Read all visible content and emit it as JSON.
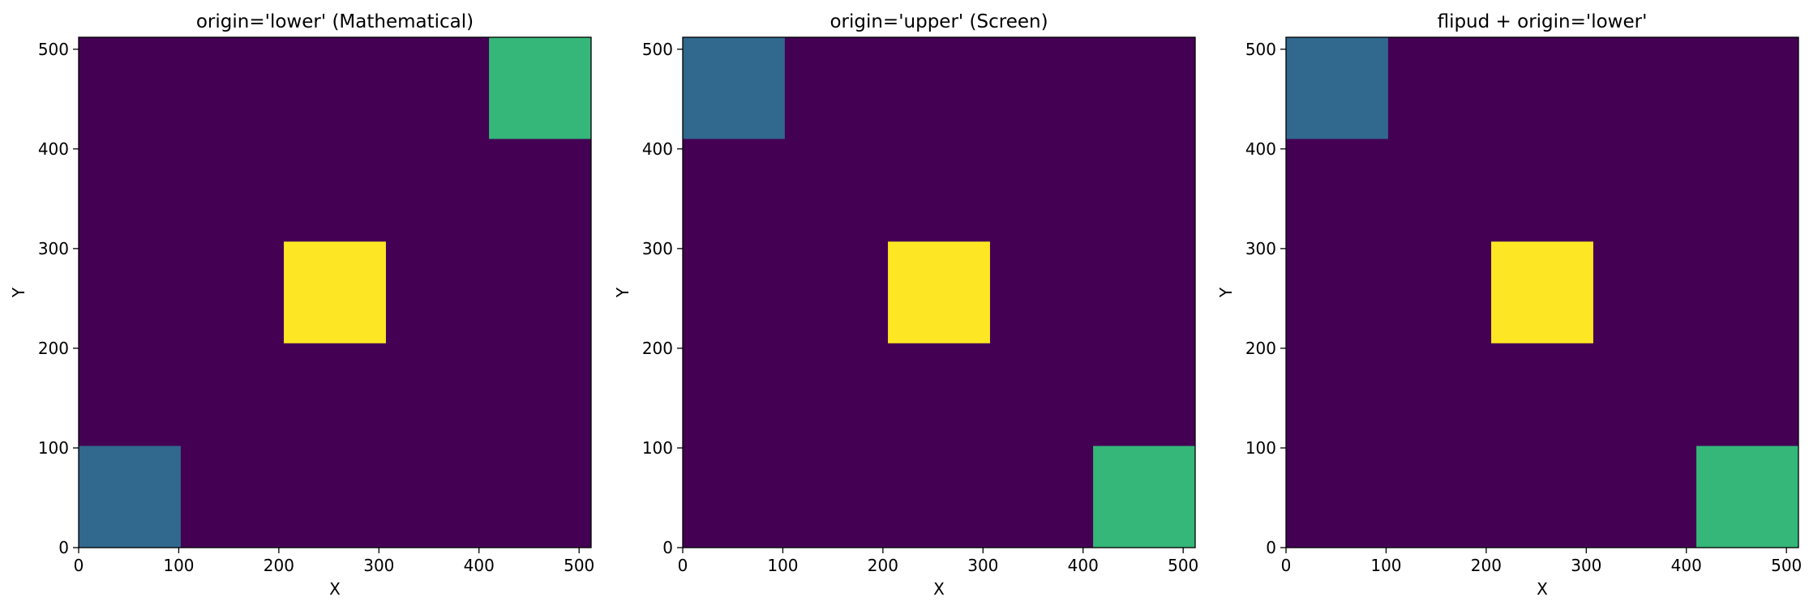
{
  "chart_data": [
    {
      "type": "heatmap",
      "title": "origin='lower' (Mathematical)",
      "xlabel": "X",
      "ylabel": "Y",
      "xlim": [
        0,
        512
      ],
      "ylim": [
        0,
        512
      ],
      "xticks": [
        0,
        100,
        200,
        300,
        400,
        500
      ],
      "yticks": [
        0,
        100,
        200,
        300,
        400,
        500
      ],
      "background_color": "#440154",
      "squares": [
        {
          "x": [
            0,
            102
          ],
          "y": [
            0,
            102
          ],
          "color": "#31688e"
        },
        {
          "x": [
            205,
            307
          ],
          "y": [
            205,
            307
          ],
          "color": "#fde725"
        },
        {
          "x": [
            410,
            512
          ],
          "y": [
            410,
            512
          ],
          "color": "#35b779"
        }
      ]
    },
    {
      "type": "heatmap",
      "title": "origin='upper' (Screen)",
      "xlabel": "X",
      "ylabel": "Y",
      "xlim": [
        0,
        512
      ],
      "ylim": [
        0,
        512
      ],
      "xticks": [
        0,
        100,
        200,
        300,
        400,
        500
      ],
      "yticks": [
        0,
        100,
        200,
        300,
        400,
        500
      ],
      "background_color": "#440154",
      "squares": [
        {
          "x": [
            0,
            102
          ],
          "y": [
            410,
            512
          ],
          "color": "#31688e"
        },
        {
          "x": [
            205,
            307
          ],
          "y": [
            205,
            307
          ],
          "color": "#fde725"
        },
        {
          "x": [
            410,
            512
          ],
          "y": [
            0,
            102
          ],
          "color": "#35b779"
        }
      ]
    },
    {
      "type": "heatmap",
      "title": "flipud + origin='lower'",
      "xlabel": "X",
      "ylabel": "Y",
      "xlim": [
        0,
        512
      ],
      "ylim": [
        0,
        512
      ],
      "xticks": [
        0,
        100,
        200,
        300,
        400,
        500
      ],
      "yticks": [
        0,
        100,
        200,
        300,
        400,
        500
      ],
      "background_color": "#440154",
      "squares": [
        {
          "x": [
            0,
            102
          ],
          "y": [
            410,
            512
          ],
          "color": "#31688e"
        },
        {
          "x": [
            205,
            307
          ],
          "y": [
            205,
            307
          ],
          "color": "#fde725"
        },
        {
          "x": [
            410,
            512
          ],
          "y": [
            0,
            102
          ],
          "color": "#35b779"
        }
      ]
    }
  ]
}
